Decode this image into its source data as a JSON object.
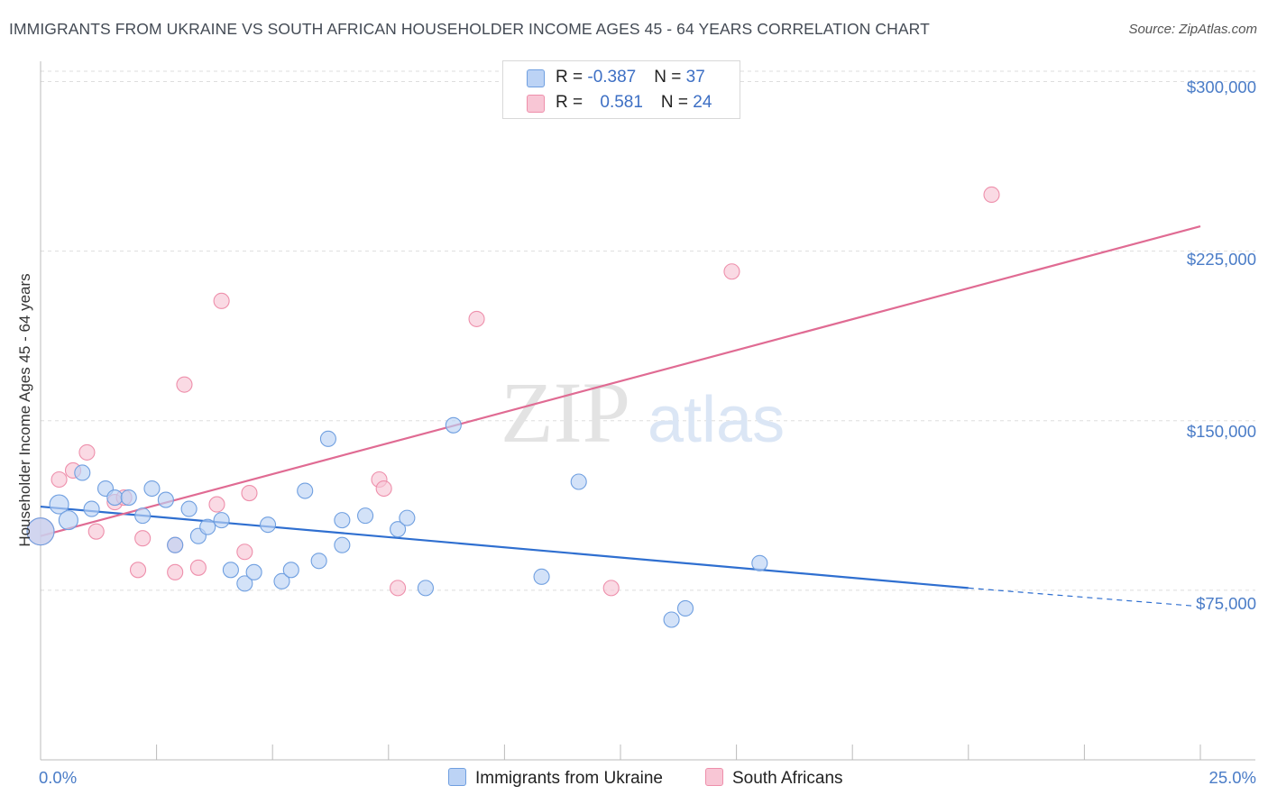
{
  "title": "IMMIGRANTS FROM UKRAINE VS SOUTH AFRICAN HOUSEHOLDER INCOME AGES 45 - 64 YEARS CORRELATION CHART",
  "source": "Source: ZipAtlas.com",
  "watermark": {
    "zip": "ZIP",
    "atlas": "atlas"
  },
  "legend": {
    "series1": {
      "r_label": "R = ",
      "r_value": "-0.387",
      "n_label": "N = ",
      "n_value": "37"
    },
    "series2": {
      "r_label": "R = ",
      "r_value": "0.581",
      "n_label": "N = ",
      "n_value": "24"
    }
  },
  "colors": {
    "ukraine_fill": "#bcd3f5",
    "ukraine_stroke": "#6f9fe0",
    "ukraine_line": "#2f6fd0",
    "sa_fill": "#f8c6d5",
    "sa_stroke": "#ee8fab",
    "sa_line": "#e06b93",
    "axis_text": "#4a7cc7",
    "grid": "#dddddd"
  },
  "chart_data": {
    "type": "scatter",
    "title": "IMMIGRANTS FROM UKRAINE VS SOUTH AFRICAN HOUSEHOLDER INCOME AGES 45 - 64 YEARS CORRELATION CHART",
    "xlabel": "",
    "ylabel": "Householder Income Ages 45 - 64 years",
    "xlim": [
      0,
      25
    ],
    "ylim": [
      0,
      307000
    ],
    "x_tick_labels": [
      "0.0%",
      "25.0%"
    ],
    "y_ticks": [
      {
        "value": 75000,
        "label": "$75,000"
      },
      {
        "value": 150000,
        "label": "$150,000"
      },
      {
        "value": 225000,
        "label": "$225,000"
      },
      {
        "value": 300000,
        "label": "$300,000"
      }
    ],
    "series": [
      {
        "name": "Immigrants from Ukraine",
        "r": -0.387,
        "n": 37,
        "trend": {
          "x0": 0.0,
          "y0": 112000,
          "x1": 20.0,
          "y1": 76000,
          "dash_to_x": 24.9,
          "dash_to_y": 68000
        },
        "points": [
          {
            "x": 0.0,
            "y": 101000,
            "s": 2
          },
          {
            "x": 0.4,
            "y": 113000,
            "s": 1
          },
          {
            "x": 0.6,
            "y": 106000,
            "s": 1
          },
          {
            "x": 0.9,
            "y": 127000,
            "s": 0
          },
          {
            "x": 1.1,
            "y": 111000,
            "s": 0
          },
          {
            "x": 1.4,
            "y": 120000,
            "s": 0
          },
          {
            "x": 1.6,
            "y": 116000,
            "s": 0
          },
          {
            "x": 1.9,
            "y": 116000,
            "s": 0
          },
          {
            "x": 2.2,
            "y": 108000,
            "s": 0
          },
          {
            "x": 2.4,
            "y": 120000,
            "s": 0
          },
          {
            "x": 2.7,
            "y": 115000,
            "s": 0
          },
          {
            "x": 2.9,
            "y": 95000,
            "s": 0
          },
          {
            "x": 3.2,
            "y": 111000,
            "s": 0
          },
          {
            "x": 3.4,
            "y": 99000,
            "s": 0
          },
          {
            "x": 3.6,
            "y": 103000,
            "s": 0
          },
          {
            "x": 3.9,
            "y": 106000,
            "s": 0
          },
          {
            "x": 4.1,
            "y": 84000,
            "s": 0
          },
          {
            "x": 4.4,
            "y": 78000,
            "s": 0
          },
          {
            "x": 4.6,
            "y": 83000,
            "s": 0
          },
          {
            "x": 4.9,
            "y": 104000,
            "s": 0
          },
          {
            "x": 5.2,
            "y": 79000,
            "s": 0
          },
          {
            "x": 5.4,
            "y": 84000,
            "s": 0
          },
          {
            "x": 5.7,
            "y": 119000,
            "s": 0
          },
          {
            "x": 6.0,
            "y": 88000,
            "s": 0
          },
          {
            "x": 6.2,
            "y": 142000,
            "s": 0
          },
          {
            "x": 6.5,
            "y": 95000,
            "s": 0
          },
          {
            "x": 6.5,
            "y": 106000,
            "s": 0
          },
          {
            "x": 7.0,
            "y": 108000,
            "s": 0
          },
          {
            "x": 7.7,
            "y": 102000,
            "s": 0
          },
          {
            "x": 7.9,
            "y": 107000,
            "s": 0
          },
          {
            "x": 8.3,
            "y": 76000,
            "s": 0
          },
          {
            "x": 8.9,
            "y": 148000,
            "s": 0
          },
          {
            "x": 10.8,
            "y": 81000,
            "s": 0
          },
          {
            "x": 11.6,
            "y": 123000,
            "s": 0
          },
          {
            "x": 13.6,
            "y": 62000,
            "s": 0
          },
          {
            "x": 13.9,
            "y": 67000,
            "s": 0
          },
          {
            "x": 15.5,
            "y": 87000,
            "s": 0
          }
        ]
      },
      {
        "name": "South Africans",
        "r": 0.581,
        "n": 24,
        "trend": {
          "x0": 0.0,
          "y0": 99000,
          "x1": 25.0,
          "y1": 236000
        },
        "points": [
          {
            "x": 0.0,
            "y": 101000,
            "s": 2
          },
          {
            "x": 0.4,
            "y": 124000,
            "s": 0
          },
          {
            "x": 0.7,
            "y": 128000,
            "s": 0
          },
          {
            "x": 1.0,
            "y": 136000,
            "s": 0
          },
          {
            "x": 1.2,
            "y": 101000,
            "s": 0
          },
          {
            "x": 1.6,
            "y": 114000,
            "s": 0
          },
          {
            "x": 1.8,
            "y": 116000,
            "s": 0
          },
          {
            "x": 2.1,
            "y": 84000,
            "s": 0
          },
          {
            "x": 2.2,
            "y": 98000,
            "s": 0
          },
          {
            "x": 2.9,
            "y": 95000,
            "s": 0
          },
          {
            "x": 2.9,
            "y": 83000,
            "s": 0
          },
          {
            "x": 3.1,
            "y": 166000,
            "s": 0
          },
          {
            "x": 3.4,
            "y": 85000,
            "s": 0
          },
          {
            "x": 3.8,
            "y": 113000,
            "s": 0
          },
          {
            "x": 3.9,
            "y": 203000,
            "s": 0
          },
          {
            "x": 4.4,
            "y": 92000,
            "s": 0
          },
          {
            "x": 4.5,
            "y": 118000,
            "s": 0
          },
          {
            "x": 7.3,
            "y": 124000,
            "s": 0
          },
          {
            "x": 7.4,
            "y": 120000,
            "s": 0
          },
          {
            "x": 7.7,
            "y": 76000,
            "s": 0
          },
          {
            "x": 9.4,
            "y": 195000,
            "s": 0
          },
          {
            "x": 12.3,
            "y": 76000,
            "s": 0
          },
          {
            "x": 14.9,
            "y": 216000,
            "s": 0
          },
          {
            "x": 20.5,
            "y": 250000,
            "s": 0
          }
        ]
      }
    ]
  },
  "bottom_legend": [
    "Immigrants from Ukraine",
    "South Africans"
  ]
}
